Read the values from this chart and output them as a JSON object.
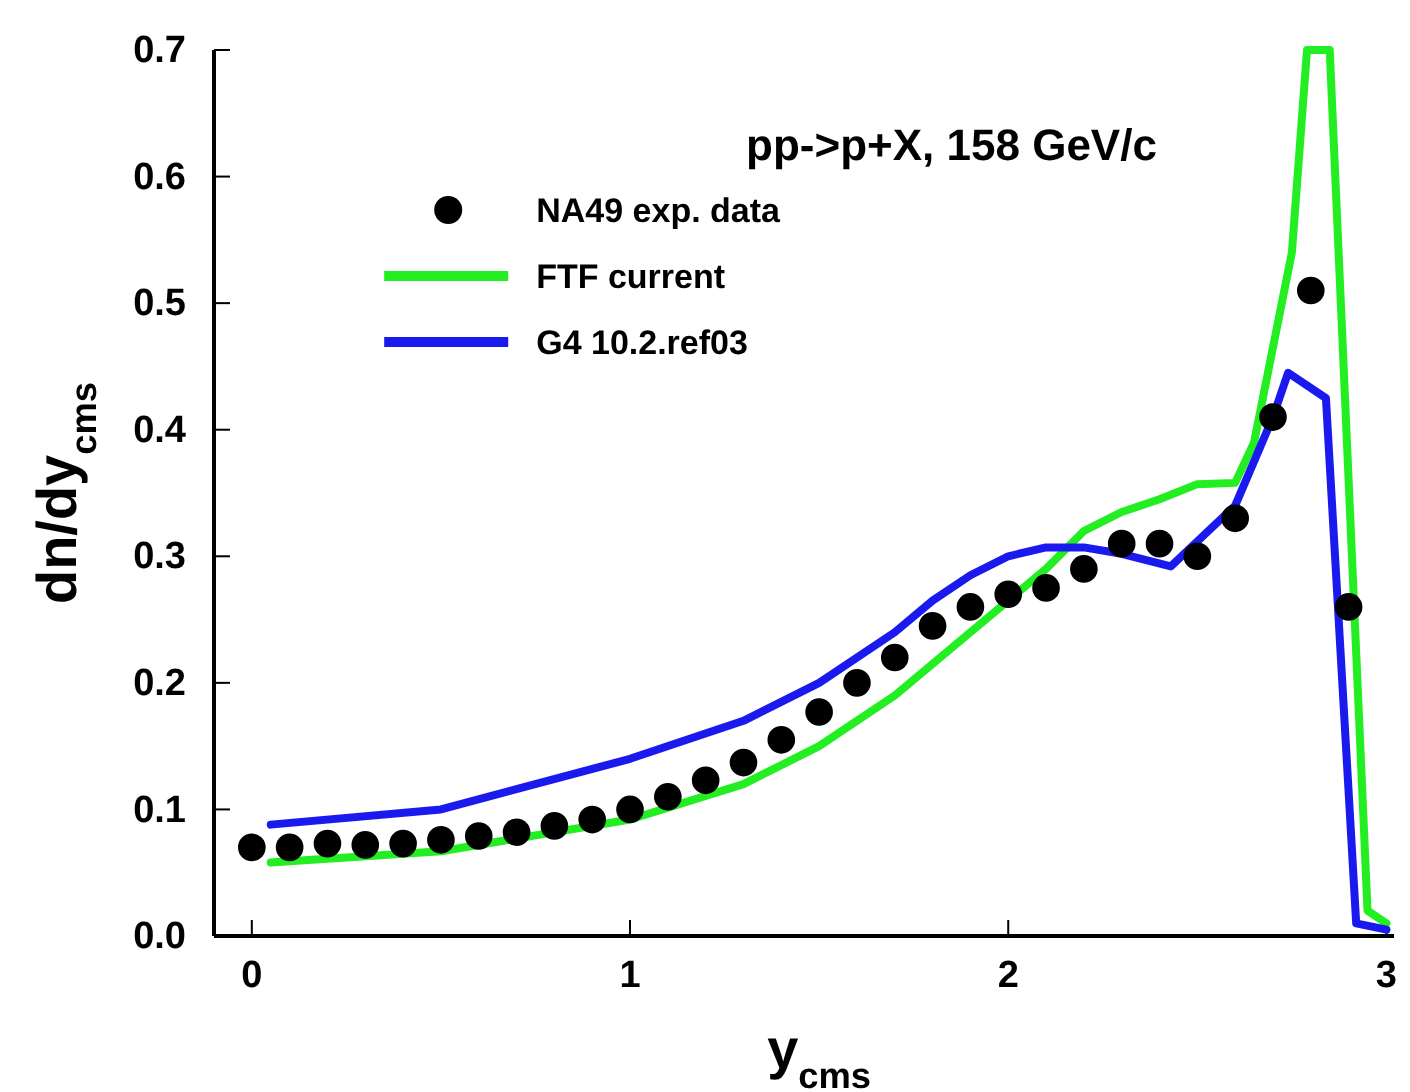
{
  "chart_data": {
    "type": "line",
    "title": "pp->p+X, 158 GeV/c",
    "xlabel": "y$_{cms}$",
    "ylabel": "dn/dy$_{cms}$",
    "xlim": [
      -0.1,
      3.02
    ],
    "ylim": [
      0,
      0.7
    ],
    "xticks": [
      0,
      1,
      2,
      3
    ],
    "yticks": [
      {
        "value": 0,
        "label": "0.0"
      },
      0.1,
      0.2,
      0.3,
      0.4,
      0.5,
      0.6,
      0.7
    ],
    "grid": false,
    "legend": "top",
    "series": [
      {
        "name": "NA49 exp. data",
        "type": "scatter",
        "marker": "circle",
        "color": "#000000",
        "x": [
          0,
          0.1,
          0.2,
          0.3,
          0.4,
          0.5,
          0.6,
          0.7,
          0.8,
          0.9,
          1.0,
          1.1,
          1.2,
          1.3,
          1.4,
          1.5,
          1.6,
          1.7,
          1.8,
          1.9,
          2.0,
          2.1,
          2.2,
          2.3,
          2.4,
          2.5,
          2.6,
          2.7,
          2.8,
          2.9
        ],
        "values": [
          0.07,
          0.07,
          0.073,
          0.072,
          0.073,
          0.076,
          0.079,
          0.082,
          0.087,
          0.092,
          0.1,
          0.11,
          0.123,
          0.137,
          0.155,
          0.177,
          0.2,
          0.22,
          0.245,
          0.26,
          0.27,
          0.275,
          0.29,
          0.31,
          0.31,
          0.3,
          0.33,
          0.41,
          0.51,
          0.26
        ]
      },
      {
        "name": "FTF current",
        "color": "#22ee22",
        "x": [
          0.05,
          0.5,
          1.0,
          1.3,
          1.5,
          1.7,
          1.9,
          2.1,
          2.2,
          2.3,
          2.4,
          2.5,
          2.6,
          2.65,
          2.75,
          2.79,
          2.85,
          2.95,
          3.0
        ],
        "values": [
          0.058,
          0.067,
          0.092,
          0.12,
          0.15,
          0.19,
          0.24,
          0.29,
          0.32,
          0.335,
          0.345,
          0.357,
          0.358,
          0.39,
          0.54,
          0.7,
          0.7,
          0.02,
          0.01
        ]
      },
      {
        "name": "G4 10.2.ref03",
        "color": "#1a1aee",
        "x": [
          0.05,
          0.5,
          1.0,
          1.3,
          1.5,
          1.7,
          1.8,
          1.9,
          2.0,
          2.1,
          2.2,
          2.3,
          2.43,
          2.6,
          2.7,
          2.74,
          2.84,
          2.92,
          3.0
        ],
        "values": [
          0.088,
          0.1,
          0.14,
          0.17,
          0.2,
          0.24,
          0.265,
          0.285,
          0.3,
          0.307,
          0.307,
          0.302,
          0.292,
          0.34,
          0.41,
          0.445,
          0.425,
          0.01,
          0.005
        ]
      }
    ]
  }
}
